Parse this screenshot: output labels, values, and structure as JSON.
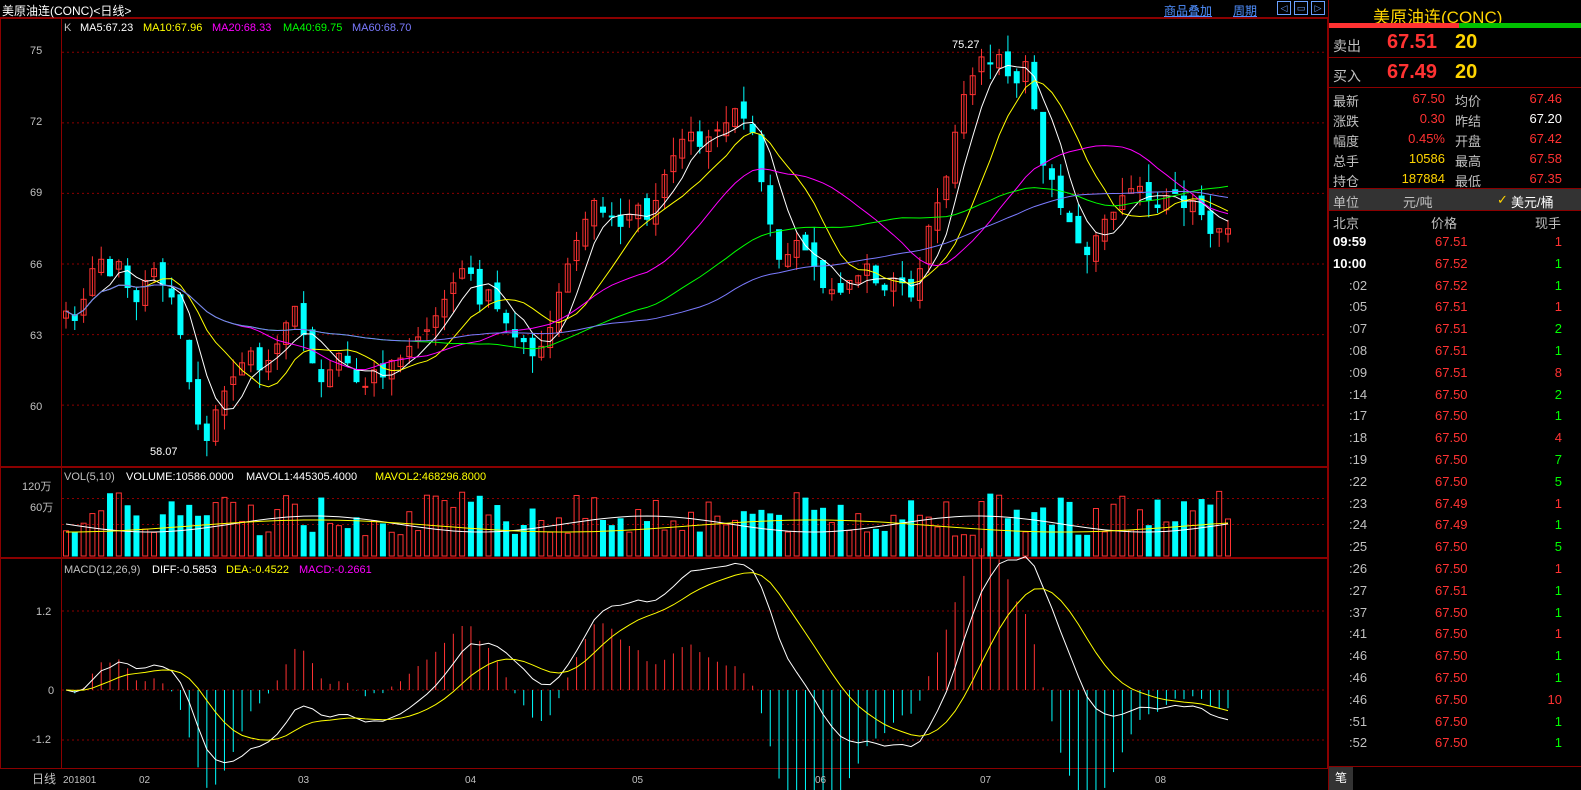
{
  "window": {
    "title": "美原油连(CONC)<日线>",
    "link_overlay": "商品叠加",
    "link_period": "周期"
  },
  "colors": {
    "up": "#ff3232",
    "down": "#00ffff",
    "ma5": "#ffffff",
    "ma10": "#ffff00",
    "ma20": "#ff00ff",
    "ma40": "#00ff00",
    "ma60": "#7b7bff",
    "grid": "#8b0000",
    "panel_border": "#8b0000"
  },
  "price_panel": {
    "k_label": "K",
    "ma5": "MA5:67.23",
    "ma10": "MA10:67.96",
    "ma20": "MA20:68.33",
    "ma40": "MA40:69.75",
    "ma60": "MA60:68.70",
    "y_ticks": [
      "75",
      "72",
      "69",
      "66",
      "63",
      "60"
    ],
    "high_marker": "75.27",
    "low_marker": "58.07"
  },
  "vol_panel": {
    "label": "VOL(5,10)",
    "volume": "VOLUME:10586.0000",
    "mavol1": "MAVOL1:445305.4000",
    "mavol2": "MAVOL2:468296.8000",
    "y_ticks": [
      "120万",
      "60万"
    ]
  },
  "macd_panel": {
    "label": "MACD(12,26,9)",
    "diff": "DIFF:-0.5853",
    "dea": "DEA:-0.4522",
    "macd": "MACD:-0.2661",
    "y_ticks": [
      "1.2",
      "0",
      "-1.2"
    ]
  },
  "x_axis": {
    "period": "日线",
    "labels": [
      "201801",
      "02",
      "03",
      "04",
      "05",
      "06",
      "07",
      "08"
    ]
  },
  "chart_data": {
    "type": "candlestick",
    "y_range": [
      57.5,
      76.2
    ],
    "high": 75.27,
    "low": 58.07,
    "ohlc_sketch": [
      64.0,
      63.6,
      64.5,
      65.8,
      66.2,
      65.5,
      66.1,
      65.0,
      64.4,
      65.3,
      65.8,
      65.1,
      64.6,
      63.0,
      61.0,
      59.2,
      58.5,
      59.8,
      60.6,
      61.2,
      61.8,
      62.3,
      61.5,
      61.9,
      62.6,
      63.5,
      64.2,
      63.0,
      61.8,
      61.0,
      61.5,
      62.2,
      61.8,
      61.0,
      60.8,
      61.5,
      61.2,
      61.9,
      62.0,
      62.5,
      62.9,
      63.2,
      63.8,
      64.5,
      65.2,
      65.8,
      65.6,
      64.3,
      64.9,
      64.1,
      63.5,
      62.9,
      62.7,
      62.1,
      62.5,
      63.3,
      64.8,
      66.0,
      67.0,
      67.9,
      68.7,
      68.2,
      68.0,
      67.6,
      68.1,
      68.5,
      67.9,
      68.7,
      69.8,
      70.6,
      71.3,
      71.6,
      71.0,
      71.4,
      71.7,
      72.0,
      72.6,
      72.2,
      71.6,
      69.5,
      67.7,
      66.2,
      66.4,
      67.0,
      66.6,
      65.9,
      65.0,
      64.9,
      64.8,
      65.3,
      65.5,
      66.0,
      65.2,
      64.9,
      65.4,
      65.2,
      64.6,
      65.8,
      67.6,
      68.6,
      69.7,
      71.6,
      73.2,
      74.0,
      74.8,
      74.5,
      74.9,
      74.0,
      73.7,
      74.6,
      72.6,
      70.2,
      69.6,
      68.4,
      67.8,
      66.9,
      66.4,
      67.2,
      67.9,
      68.2,
      68.9,
      69.2,
      69.3,
      68.7,
      68.4,
      68.9,
      69.0,
      68.4,
      68.7,
      68.1,
      67.3,
      67.5,
      67.5
    ]
  },
  "sidebar": {
    "name": "美原油连(CONC)",
    "sell_label": "卖出",
    "sell_price": "67.51",
    "sell_vol": "20",
    "buy_label": "买入",
    "buy_price": "67.49",
    "buy_vol": "20",
    "stats": [
      {
        "l1": "最新",
        "v1": "67.50",
        "l2": "均价",
        "v2": "67.46"
      },
      {
        "l1": "涨跌",
        "v1": "0.30",
        "l2": "昨结",
        "v2": "67.20"
      },
      {
        "l1": "幅度",
        "v1": "0.45%",
        "l2": "开盘",
        "v2": "67.42"
      },
      {
        "l1": "总手",
        "v1": "10586",
        "l2": "最高",
        "v2": "67.58"
      },
      {
        "l1": "持仓",
        "v1": "187884",
        "l2": "最低",
        "v2": "67.35"
      }
    ],
    "unit_label": "单位",
    "unit_cny": "元/吨",
    "unit_check": "✓",
    "unit_usd": "美元/桶",
    "ticks_header": {
      "time": "北京",
      "price": "价格",
      "vol": "现手"
    },
    "ticks": [
      {
        "t": "09:59",
        "p": "67.51",
        "v": "1"
      },
      {
        "t": "10:00",
        "p": "67.52",
        "v": "1"
      },
      {
        "t": ":02",
        "p": "67.52",
        "v": "1"
      },
      {
        "t": ":05",
        "p": "67.51",
        "v": "1"
      },
      {
        "t": ":07",
        "p": "67.51",
        "v": "2"
      },
      {
        "t": ":08",
        "p": "67.51",
        "v": "1"
      },
      {
        "t": ":09",
        "p": "67.51",
        "v": "8"
      },
      {
        "t": ":14",
        "p": "67.50",
        "v": "2"
      },
      {
        "t": ":17",
        "p": "67.50",
        "v": "1"
      },
      {
        "t": ":18",
        "p": "67.50",
        "v": "4"
      },
      {
        "t": ":19",
        "p": "67.50",
        "v": "7"
      },
      {
        "t": ":22",
        "p": "67.50",
        "v": "5"
      },
      {
        "t": ":23",
        "p": "67.49",
        "v": "1"
      },
      {
        "t": ":24",
        "p": "67.49",
        "v": "1"
      },
      {
        "t": ":25",
        "p": "67.50",
        "v": "5"
      },
      {
        "t": ":26",
        "p": "67.50",
        "v": "1"
      },
      {
        "t": ":27",
        "p": "67.51",
        "v": "1"
      },
      {
        "t": ":37",
        "p": "67.50",
        "v": "1"
      },
      {
        "t": ":41",
        "p": "67.50",
        "v": "1"
      },
      {
        "t": ":46",
        "p": "67.50",
        "v": "1"
      },
      {
        "t": ":46",
        "p": "67.50",
        "v": "1"
      },
      {
        "t": ":46",
        "p": "67.50",
        "v": "10"
      },
      {
        "t": ":51",
        "p": "67.50",
        "v": "1"
      },
      {
        "t": ":52",
        "p": "67.50",
        "v": "1"
      }
    ],
    "footer_tab": "笔"
  }
}
